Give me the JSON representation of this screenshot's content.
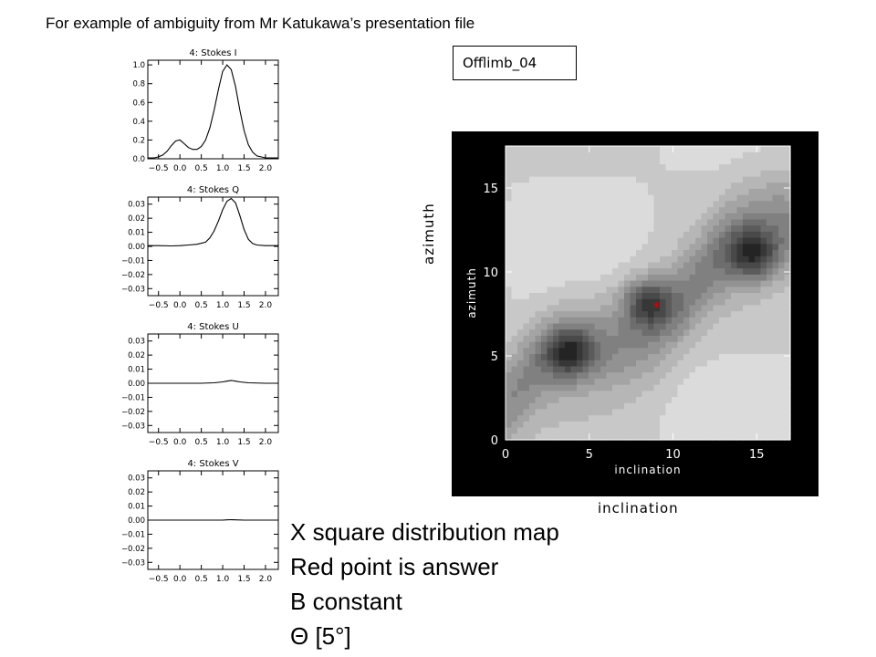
{
  "page_title": "For example of ambiguity from Mr Katukawa’s presentation file",
  "label_box": "Offlimb_04",
  "outer_labels": {
    "y": "azimuth",
    "x": "inclination"
  },
  "notes": [
    "X square distribution map",
    "Red point is answer",
    "B constant",
    "Θ [5°]"
  ],
  "chart_data": [
    {
      "type": "line",
      "title": "4: Stokes I",
      "xlim": [
        -0.75,
        2.3
      ],
      "ylim": [
        0,
        1.05
      ],
      "xticks": [
        -0.5,
        0.0,
        0.5,
        1.0,
        1.5,
        2.0
      ],
      "xtick_labels": [
        "−0.5",
        "0.0",
        "0.5",
        "1.0",
        "1.5",
        "2.0"
      ],
      "yticks": [
        0.0,
        0.2,
        0.4,
        0.6,
        0.8,
        1.0
      ],
      "ytick_labels": [
        "0.0",
        "0.2",
        "0.4",
        "0.6",
        "0.8",
        "1.0"
      ],
      "x": [
        -0.75,
        -0.6,
        -0.5,
        -0.4,
        -0.3,
        -0.2,
        -0.1,
        0.0,
        0.1,
        0.2,
        0.3,
        0.4,
        0.5,
        0.6,
        0.7,
        0.8,
        0.9,
        1.0,
        1.1,
        1.2,
        1.3,
        1.4,
        1.5,
        1.6,
        1.7,
        1.8,
        2.0,
        2.3
      ],
      "y": [
        0.01,
        0.01,
        0.02,
        0.04,
        0.08,
        0.14,
        0.19,
        0.2,
        0.16,
        0.12,
        0.1,
        0.1,
        0.13,
        0.2,
        0.33,
        0.52,
        0.74,
        0.93,
        1.0,
        0.95,
        0.77,
        0.52,
        0.3,
        0.15,
        0.07,
        0.03,
        0.01,
        0.01
      ]
    },
    {
      "type": "line",
      "title": "4: Stokes Q",
      "xlim": [
        -0.75,
        2.3
      ],
      "ylim": [
        -0.035,
        0.035
      ],
      "xticks": [
        -0.5,
        0.0,
        0.5,
        1.0,
        1.5,
        2.0
      ],
      "xtick_labels": [
        "−0.5",
        "0.0",
        "0.5",
        "1.0",
        "1.5",
        "2.0"
      ],
      "yticks": [
        -0.03,
        -0.02,
        -0.01,
        0.0,
        0.01,
        0.02,
        0.03
      ],
      "ytick_labels": [
        "−0.03",
        "−0.02",
        "−0.01",
        "0.00",
        "0.01",
        "0.02",
        "0.03"
      ],
      "x": [
        -0.75,
        -0.5,
        -0.2,
        0.0,
        0.2,
        0.4,
        0.6,
        0.7,
        0.8,
        0.9,
        1.0,
        1.1,
        1.2,
        1.3,
        1.4,
        1.5,
        1.6,
        1.7,
        1.8,
        2.0,
        2.3
      ],
      "y": [
        0.0005,
        0.0005,
        0.0003,
        0.0005,
        0.001,
        0.0015,
        0.003,
        0.006,
        0.011,
        0.018,
        0.026,
        0.032,
        0.034,
        0.031,
        0.022,
        0.012,
        0.005,
        0.002,
        0.001,
        0.0005,
        0.0005
      ]
    },
    {
      "type": "line",
      "title": "4: Stokes U",
      "xlim": [
        -0.75,
        2.3
      ],
      "ylim": [
        -0.035,
        0.035
      ],
      "xticks": [
        -0.5,
        0.0,
        0.5,
        1.0,
        1.5,
        2.0
      ],
      "xtick_labels": [
        "−0.5",
        "0.0",
        "0.5",
        "1.0",
        "1.5",
        "2.0"
      ],
      "yticks": [
        -0.03,
        -0.02,
        -0.01,
        0.0,
        0.01,
        0.02,
        0.03
      ],
      "ytick_labels": [
        "−0.03",
        "−0.02",
        "−0.01",
        "0.00",
        "0.01",
        "0.02",
        "0.03"
      ],
      "x": [
        -0.75,
        0.0,
        0.5,
        0.8,
        1.0,
        1.1,
        1.2,
        1.3,
        1.4,
        1.6,
        2.0,
        2.3
      ],
      "y": [
        0.0,
        0.0,
        0.0,
        0.0003,
        0.001,
        0.0015,
        0.002,
        0.0015,
        0.001,
        0.0003,
        0.0,
        0.0
      ]
    },
    {
      "type": "line",
      "title": "4: Stokes V",
      "xlim": [
        -0.75,
        2.3
      ],
      "ylim": [
        -0.035,
        0.035
      ],
      "xticks": [
        -0.5,
        0.0,
        0.5,
        1.0,
        1.5,
        2.0
      ],
      "xtick_labels": [
        "−0.5",
        "0.0",
        "0.5",
        "1.0",
        "1.5",
        "2.0"
      ],
      "yticks": [
        -0.03,
        -0.02,
        -0.01,
        0.0,
        0.01,
        0.02,
        0.03
      ],
      "ytick_labels": [
        "−0.03",
        "−0.02",
        "−0.01",
        "0.00",
        "0.01",
        "0.02",
        "0.03"
      ],
      "x": [
        -0.75,
        0.5,
        1.0,
        1.1,
        1.2,
        1.3,
        1.5,
        2.3
      ],
      "y": [
        0.0,
        0.0,
        0.0,
        0.0002,
        0.0003,
        0.0002,
        0.0,
        0.0
      ]
    },
    {
      "type": "heatmap",
      "xlabel": "inclination",
      "ylabel": "azimuth",
      "xlim": [
        0,
        17
      ],
      "ylim": [
        0,
        17.5
      ],
      "xticks": [
        0,
        5,
        10,
        15
      ],
      "xtick_labels": [
        "0",
        "5",
        "10",
        "15"
      ],
      "yticks": [
        0,
        5,
        10,
        15
      ],
      "ytick_labels": [
        "0",
        "5",
        "10",
        "15"
      ],
      "colormap": "grayscale (low = dark)",
      "answer_point": {
        "x": 9,
        "y": 8,
        "color": "#e00000",
        "marker": "*"
      },
      "minima": [
        {
          "x": 3.8,
          "y": 5.2
        },
        {
          "x": 8.5,
          "y": 8.2
        },
        {
          "x": 14.8,
          "y": 11.0
        }
      ]
    }
  ]
}
